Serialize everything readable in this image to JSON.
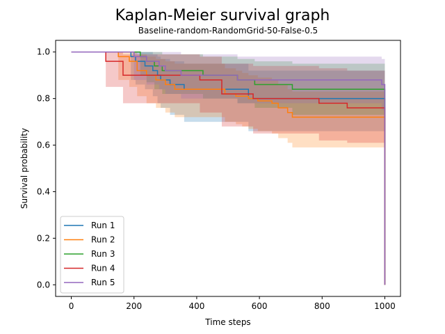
{
  "chart_data": {
    "type": "line",
    "title": "Kaplan-Meier survival graph",
    "subtitle": "Baseline-random-RandomGrid-50-False-0.5",
    "xlabel": "Time steps",
    "ylabel": "Survival probability",
    "xlim": [
      -50,
      1050
    ],
    "ylim": [
      -0.05,
      1.05
    ],
    "xticks": [
      0,
      200,
      400,
      600,
      800,
      1000
    ],
    "yticks": [
      0.0,
      0.2,
      0.4,
      0.6,
      0.8,
      1.0
    ],
    "xtick_labels": [
      "0",
      "200",
      "400",
      "600",
      "800",
      "1000"
    ],
    "ytick_labels": [
      "0.0",
      "0.2",
      "0.4",
      "0.6",
      "0.8",
      "1.0"
    ],
    "grid": false,
    "legend": "lower-left",
    "series": [
      {
        "name": "Run 1",
        "color": "#1f77b4",
        "x": [
          0,
          190,
          205,
          235,
          260,
          275,
          285,
          315,
          360,
          565,
          1000
        ],
        "y": [
          1.0,
          0.98,
          0.96,
          0.94,
          0.92,
          0.9,
          0.88,
          0.86,
          0.84,
          0.8,
          0.0
        ],
        "ci_upper": [
          1.0,
          1.0,
          1.0,
          1.0,
          0.99,
          0.98,
          0.97,
          0.96,
          0.95,
          0.92,
          0.92
        ],
        "ci_lower": [
          1.0,
          0.88,
          0.86,
          0.84,
          0.81,
          0.78,
          0.76,
          0.73,
          0.7,
          0.66,
          0.66
        ]
      },
      {
        "name": "Run 2",
        "color": "#ff7f0e",
        "x": [
          0,
          150,
          185,
          210,
          240,
          270,
          300,
          330,
          490,
          500,
          525,
          545,
          565,
          595,
          640,
          660,
          690,
          705,
          1000
        ],
        "y": [
          1.0,
          0.98,
          0.96,
          0.92,
          0.9,
          0.88,
          0.86,
          0.84,
          0.82,
          0.82,
          0.81,
          0.81,
          0.8,
          0.79,
          0.78,
          0.76,
          0.74,
          0.72,
          0.0
        ],
        "ci_upper": [
          1.0,
          1.0,
          1.0,
          0.99,
          0.98,
          0.97,
          0.96,
          0.95,
          0.93,
          0.93,
          0.92,
          0.91,
          0.9,
          0.89,
          0.88,
          0.86,
          0.84,
          0.83,
          0.83
        ],
        "ci_lower": [
          1.0,
          0.88,
          0.85,
          0.81,
          0.78,
          0.76,
          0.74,
          0.72,
          0.7,
          0.7,
          0.69,
          0.68,
          0.67,
          0.66,
          0.65,
          0.63,
          0.61,
          0.59,
          0.57
        ]
      },
      {
        "name": "Run 3",
        "color": "#2ca02c",
        "x": [
          0,
          220,
          240,
          265,
          290,
          420,
          530,
          585,
          705,
          1000
        ],
        "y": [
          1.0,
          0.98,
          0.96,
          0.94,
          0.92,
          0.9,
          0.88,
          0.86,
          0.84,
          0.0
        ],
        "ci_upper": [
          1.0,
          1.0,
          1.0,
          1.0,
          0.99,
          0.98,
          0.97,
          0.96,
          0.95,
          0.95
        ],
        "ci_lower": [
          1.0,
          0.9,
          0.87,
          0.84,
          0.82,
          0.8,
          0.78,
          0.76,
          0.73,
          0.73
        ]
      },
      {
        "name": "Run 4",
        "color": "#d62728",
        "x": [
          0,
          110,
          165,
          410,
          480,
          580,
          790,
          880,
          1000
        ],
        "y": [
          1.0,
          0.96,
          0.9,
          0.88,
          0.82,
          0.8,
          0.78,
          0.76,
          0.0
        ],
        "ci_upper": [
          1.0,
          1.0,
          0.99,
          0.98,
          0.95,
          0.94,
          0.93,
          0.92,
          0.92
        ],
        "ci_lower": [
          1.0,
          0.85,
          0.78,
          0.74,
          0.68,
          0.65,
          0.62,
          0.61,
          0.6
        ]
      },
      {
        "name": "Run 5",
        "color": "#9467bd",
        "x": [
          0,
          200,
          240,
          280,
          300,
          350,
          530,
          990,
          1000
        ],
        "y": [
          1.0,
          0.98,
          0.96,
          0.94,
          0.92,
          0.9,
          0.88,
          0.86,
          0.0
        ],
        "ci_upper": [
          1.0,
          1.0,
          1.0,
          1.0,
          1.0,
          0.99,
          0.98,
          0.97,
          0.97
        ],
        "ci_lower": [
          1.0,
          0.88,
          0.86,
          0.84,
          0.82,
          0.8,
          0.78,
          0.75,
          0.75
        ]
      }
    ]
  }
}
